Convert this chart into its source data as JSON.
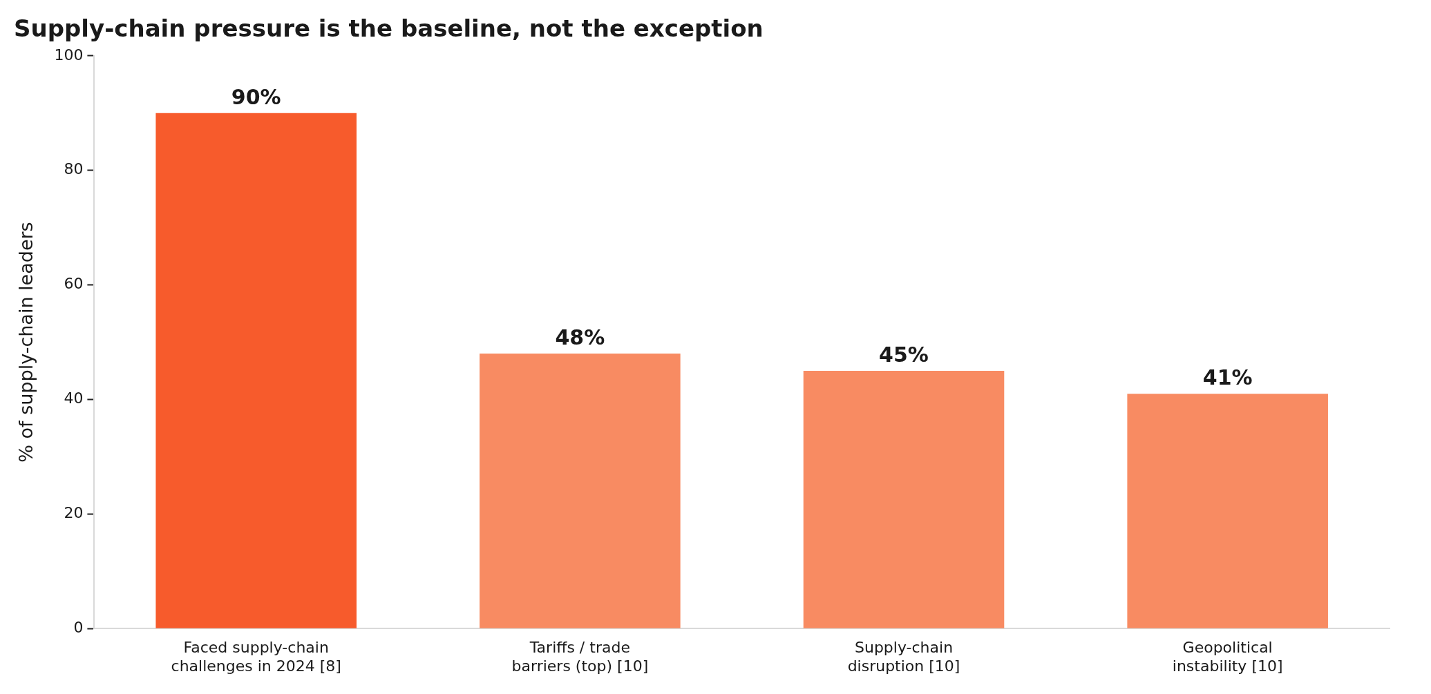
{
  "chart_data": {
    "type": "bar",
    "title": "Supply-chain pressure is the baseline, not the exception",
    "ylabel": "% of supply-chain leaders",
    "categories": [
      "Faced supply-chain challenges in 2024 [8]",
      "Tariffs / trade barriers (top) [10]",
      "Supply-chain disruption [10]",
      "Geopolitical instability [10]"
    ],
    "values": [
      90,
      48,
      45,
      41
    ],
    "colors": [
      "#f75b2c",
      "#f88b62",
      "#f88b62",
      "#f88b62"
    ],
    "value_labels": [
      "90%",
      "48%",
      "45%",
      "41%"
    ],
    "ylim": [
      0,
      100
    ],
    "yticks": [
      0,
      20,
      40,
      60,
      80,
      100
    ],
    "grid": false,
    "legend": false
  }
}
